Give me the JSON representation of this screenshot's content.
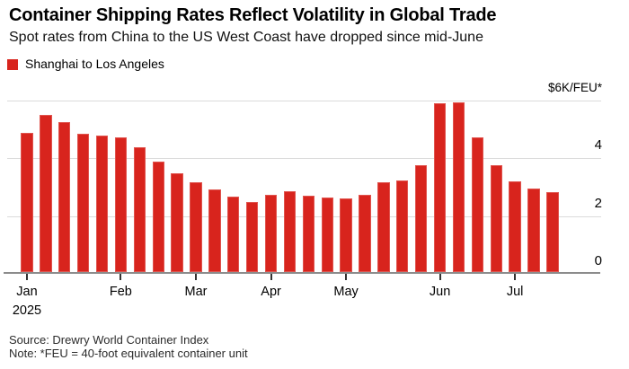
{
  "header": {
    "title": "Container Shipping Rates Reflect Volatility in Global Trade",
    "subtitle": "Spot rates from China to the US West Coast have dropped since mid-June"
  },
  "legend": {
    "label": "Shanghai to Los Angeles",
    "swatch_color": "#d8241d"
  },
  "footer": {
    "source": "Source: Drewry World Container Index",
    "note": "Note: *FEU = 40-foot equivalent container unit"
  },
  "chart_data": {
    "type": "bar",
    "title": "Container Shipping Rates Reflect Volatility in Global Trade",
    "subtitle": "Spot rates from China to the US West Coast have dropped since mid-June",
    "unit": "$K per FEU",
    "series": [
      {
        "name": "Shanghai to Los Angeles",
        "color": "#d8241d",
        "values": [
          4.87,
          5.49,
          5.26,
          4.86,
          4.8,
          4.71,
          4.39,
          3.9,
          3.48,
          3.19,
          2.92,
          2.67,
          2.5,
          2.76,
          2.87,
          2.71,
          2.64,
          2.61,
          2.75,
          3.19,
          3.24,
          3.76,
          5.91,
          5.93,
          4.72,
          3.76,
          3.21,
          2.95,
          2.84
        ]
      }
    ],
    "x_axis": {
      "tick_labels": [
        "Jan",
        "Feb",
        "Mar",
        "Apr",
        "May",
        "Jun",
        "Jul"
      ],
      "tick_bar_index": [
        0,
        5,
        9,
        13,
        17,
        22,
        26
      ],
      "year_label": "2025"
    },
    "y_axis": {
      "side": "right",
      "min": 0,
      "max": 6,
      "ticks": [
        {
          "value": 0,
          "label": "0"
        },
        {
          "value": 2,
          "label": "2"
        },
        {
          "value": 4,
          "label": "4"
        }
      ],
      "grid_values": [
        2,
        4,
        6
      ],
      "top_label": "$6K/FEU*"
    },
    "grid": "horizontal",
    "legend_position": "top-left"
  }
}
